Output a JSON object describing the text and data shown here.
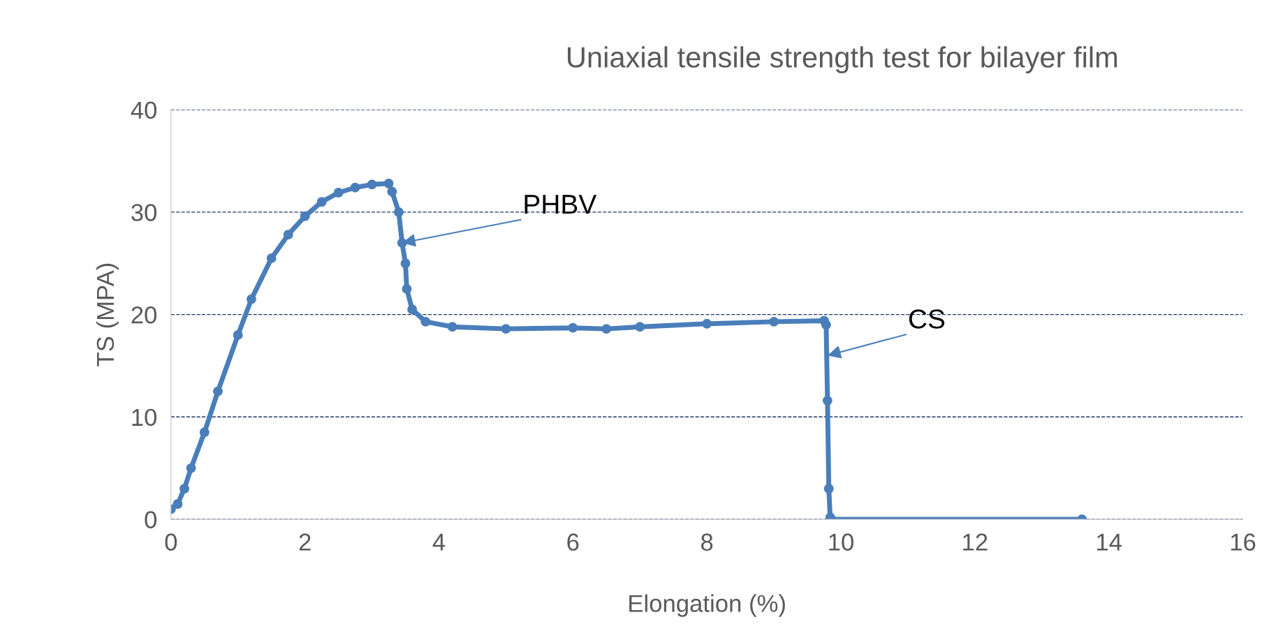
{
  "chart_data": {
    "type": "line",
    "title": "Uniaxial tensile strength test for bilayer film",
    "xlabel": "Elongation (%)",
    "ylabel": "TS (MPA)",
    "x": [
      0,
      0.1,
      0.2,
      0.3,
      0.5,
      0.7,
      1,
      1.2,
      1.5,
      1.75,
      2,
      2.25,
      2.5,
      2.75,
      3,
      3.25,
      3.3,
      3.4,
      3.45,
      3.5,
      3.52,
      3.6,
      3.8,
      4.2,
      5,
      6,
      6.5,
      7,
      8,
      9,
      9.75,
      9.78,
      9.8,
      9.82,
      9.84,
      9.86,
      13.6
    ],
    "series": [
      {
        "color": "#4a7ebb",
        "values": [
          1,
          1.5,
          3,
          5,
          8.5,
          12.5,
          18,
          21.5,
          25.5,
          27.8,
          29.6,
          31,
          31.9,
          32.4,
          32.7,
          32.8,
          32,
          30,
          27,
          25,
          22.5,
          20.5,
          19.3,
          18.8,
          18.6,
          18.7,
          18.6,
          18.8,
          19.1,
          19.3,
          19.4,
          19,
          11.6,
          3,
          0.2,
          0,
          0
        ]
      }
    ],
    "xlim": [
      0,
      16
    ],
    "xticks": [
      0,
      2,
      4,
      6,
      8,
      10,
      12,
      14,
      16
    ],
    "ylim": [
      0,
      40
    ],
    "yticks": [
      0,
      10,
      20,
      30,
      40
    ],
    "grid": "y",
    "marker": "circle",
    "line_style": "solid",
    "annotations": [
      {
        "text": "PHBV",
        "x": 3.45,
        "y": 27
      },
      {
        "text": "CS",
        "x": 9.8,
        "y": 16
      }
    ]
  }
}
